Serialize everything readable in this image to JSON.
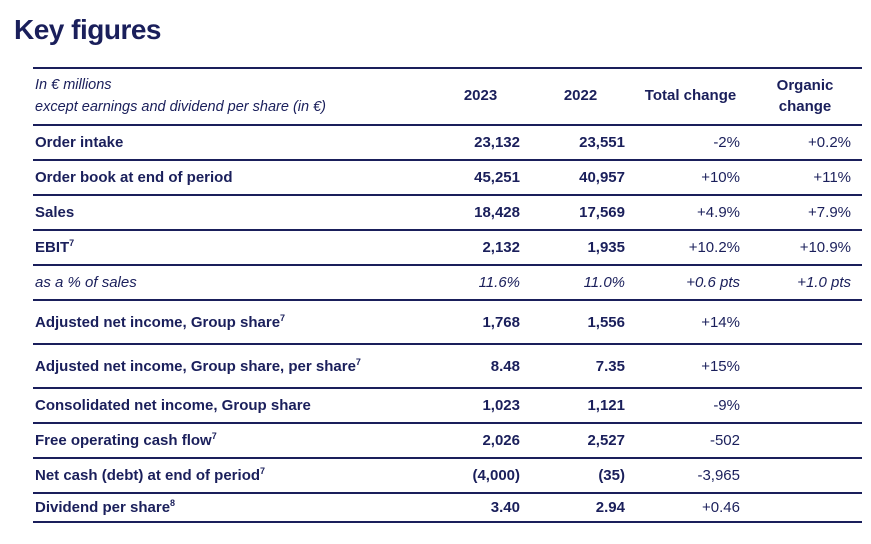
{
  "page": {
    "title": "Key figures"
  },
  "colors": {
    "navy_text": "#1a1f5b",
    "rule": "#1a1f5b",
    "background": "#ffffff"
  },
  "table": {
    "header": {
      "unit_line1": "In € millions",
      "unit_line2": "except earnings and dividend per share (in €)",
      "col_2023": "2023",
      "col_2022": "2022",
      "col_total_change": "Total change",
      "col_organic_change": "Organic change"
    },
    "rows": [
      {
        "label": "Order intake",
        "y2023": "23,132",
        "y2022": "23,551",
        "total_change": "-2%",
        "organic_change": "+0.2%"
      },
      {
        "label": "Order book at end of period",
        "y2023": "45,251",
        "y2022": "40,957",
        "total_change": "+10%",
        "organic_change": "+11%"
      },
      {
        "label": "Sales",
        "y2023": "18,428",
        "y2022": "17,569",
        "total_change": "+4.9%",
        "organic_change": "+7.9%"
      },
      {
        "label": "EBIT",
        "sup": "7",
        "y2023": "2,132",
        "y2022": "1,935",
        "total_change": "+10.2%",
        "organic_change": "+10.9%"
      },
      {
        "label": "as a % of sales",
        "y2023": "11.6%",
        "y2022": "11.0%",
        "total_change": "+0.6 pts",
        "organic_change": "+1.0 pts"
      },
      {
        "label": "Adjusted net income, Group share",
        "sup": "7",
        "y2023": "1,768",
        "y2022": "1,556",
        "total_change": "+14%",
        "organic_change": ""
      },
      {
        "label": "Adjusted net income, Group share, per share",
        "sup": "7",
        "y2023": "8.48",
        "y2022": "7.35",
        "total_change": "+15%",
        "organic_change": ""
      },
      {
        "label": "Consolidated net income, Group share",
        "y2023": "1,023",
        "y2022": "1,121",
        "total_change": "-9%",
        "organic_change": ""
      },
      {
        "label": "Free operating cash flow",
        "sup": "7",
        "y2023": "2,026",
        "y2022": "2,527",
        "total_change": "-502",
        "organic_change": ""
      },
      {
        "label": "Net cash (debt) at end of period",
        "sup": "7",
        "y2023": "(4,000)",
        "y2022": "(35)",
        "total_change": "-3,965",
        "organic_change": ""
      },
      {
        "label": "Dividend per share",
        "sup": "8",
        "y2023": "3.40",
        "y2022": "2.94",
        "total_change": "+0.46",
        "organic_change": ""
      }
    ]
  }
}
